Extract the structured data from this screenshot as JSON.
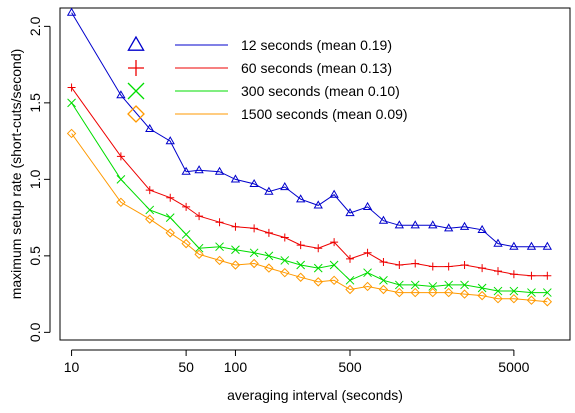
{
  "chart_data": {
    "type": "line",
    "xlabel": "averaging interval (seconds)",
    "ylabel": "maximum setup rate (short-cuts/second)",
    "x_scale": "log",
    "xlim": [
      8.5,
      11000
    ],
    "ylim": [
      -0.05,
      2.12
    ],
    "x_ticks": [
      {
        "value": 10,
        "label": "10"
      },
      {
        "value": 50,
        "label": "50"
      },
      {
        "value": 100,
        "label": "100"
      },
      {
        "value": 500,
        "label": "500"
      },
      {
        "value": 5000,
        "label": "5000"
      }
    ],
    "y_ticks": [
      {
        "value": 0.0,
        "label": "0.0"
      },
      {
        "value": 0.5,
        "label": "0.5"
      },
      {
        "value": 1.0,
        "label": "1.0"
      },
      {
        "value": 1.5,
        "label": "1.5"
      },
      {
        "value": 2.0,
        "label": "2.0"
      }
    ],
    "legend_position": "top-center",
    "x": [
      10,
      20,
      30,
      40,
      50,
      60,
      80,
      100,
      130,
      160,
      200,
      250,
      320,
      400,
      500,
      640,
      800,
      1000,
      1250,
      1600,
      2000,
      2500,
      3200,
      4000,
      5000,
      6400,
      8000
    ],
    "series": [
      {
        "name": "12 seconds (mean 0.19)",
        "color": "#0000cc",
        "marker": "triangle",
        "values": [
          2.09,
          1.55,
          1.33,
          1.25,
          1.05,
          1.06,
          1.05,
          1.0,
          0.97,
          0.92,
          0.95,
          0.87,
          0.83,
          0.9,
          0.78,
          0.82,
          0.73,
          0.7,
          0.7,
          0.7,
          0.68,
          0.69,
          0.67,
          0.58,
          0.56,
          0.56,
          0.56
        ]
      },
      {
        "name": "60 seconds (mean 0.13)",
        "color": "#ee0000",
        "marker": "plus",
        "values": [
          1.6,
          1.15,
          0.93,
          0.88,
          0.82,
          0.76,
          0.72,
          0.69,
          0.68,
          0.65,
          0.62,
          0.57,
          0.55,
          0.59,
          0.48,
          0.52,
          0.46,
          0.44,
          0.45,
          0.43,
          0.43,
          0.44,
          0.42,
          0.4,
          0.38,
          0.37,
          0.37
        ]
      },
      {
        "name": "300 seconds (mean 0.10)",
        "color": "#00dd00",
        "marker": "x",
        "values": [
          1.5,
          1.0,
          0.8,
          0.75,
          0.64,
          0.55,
          0.56,
          0.54,
          0.52,
          0.5,
          0.47,
          0.44,
          0.42,
          0.44,
          0.34,
          0.39,
          0.34,
          0.31,
          0.31,
          0.3,
          0.31,
          0.31,
          0.29,
          0.27,
          0.27,
          0.26,
          0.26
        ]
      },
      {
        "name": "1500 seconds (mean 0.09)",
        "color": "#ff9900",
        "marker": "diamond",
        "values": [
          1.3,
          0.85,
          0.74,
          0.65,
          0.58,
          0.51,
          0.47,
          0.44,
          0.45,
          0.42,
          0.39,
          0.36,
          0.33,
          0.34,
          0.28,
          0.3,
          0.28,
          0.26,
          0.26,
          0.26,
          0.26,
          0.25,
          0.24,
          0.22,
          0.22,
          0.21,
          0.2
        ]
      }
    ]
  }
}
